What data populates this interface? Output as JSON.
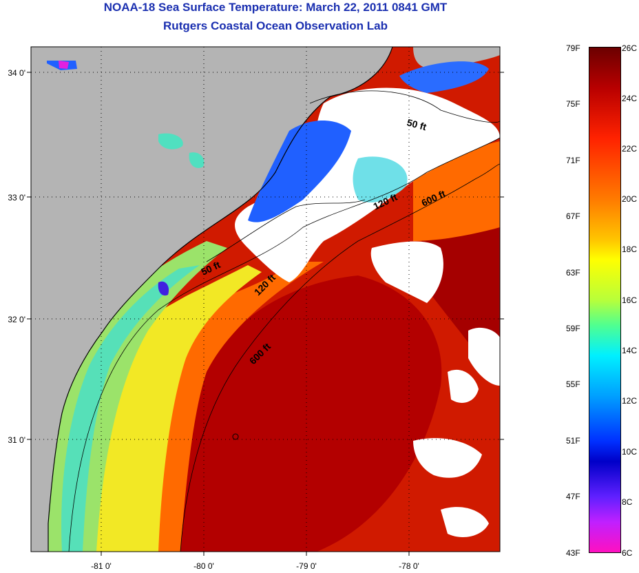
{
  "title": {
    "line1": "NOAA-18 Sea Surface Temperature:  March 22, 2011 0841 GMT",
    "line2": "Rutgers Coastal Ocean Observation Lab"
  },
  "map": {
    "lat_labels": [
      "34 0'",
      "33 0'",
      "32 0'",
      "31 0'"
    ],
    "lon_labels": [
      "-81 0'",
      "-80 0'",
      "-79 0'",
      "-78 0'"
    ],
    "contour_labels": [
      "50 ft",
      "120 ft",
      "600 ft",
      "50 ft",
      "120 ft",
      "600 ft"
    ],
    "colors": {
      "land": "#b4b4b4",
      "cloud": "#ffffff",
      "warm": "#d41a00",
      "hot": "#b00000",
      "mid": "#ff5a00",
      "yellow": "#f5ee20",
      "green": "#9fe66a",
      "cyan": "#3fe0d0",
      "blue": "#2060ff",
      "magenta": "#e020e0"
    }
  },
  "colorbar": {
    "f_labels": [
      "79F",
      "75F",
      "71F",
      "67F",
      "63F",
      "59F",
      "55F",
      "51F",
      "47F",
      "43F"
    ],
    "c_labels": [
      "26C",
      "24C",
      "22C",
      "20C",
      "18C",
      "16C",
      "14C",
      "12C",
      "10C",
      "8C",
      "6C"
    ]
  }
}
